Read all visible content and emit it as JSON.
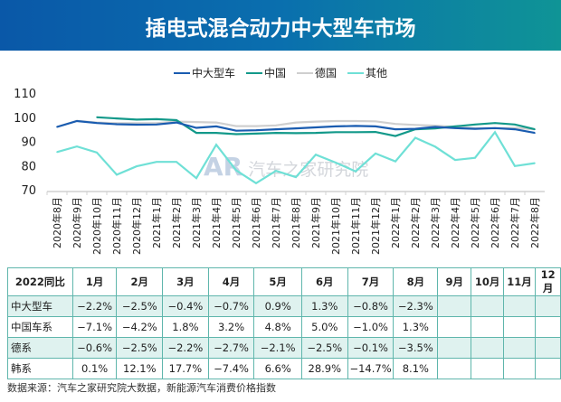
{
  "header": {
    "title": "插电式混合动力中大型车市场"
  },
  "watermark": {
    "logo": "AR",
    "text": "汽车之家研究院"
  },
  "chart_data": {
    "type": "line",
    "title": "",
    "xlabel": "",
    "ylabel": "",
    "ylim": [
      70,
      110
    ],
    "yticks": [
      "70",
      "80",
      "90",
      "100",
      "110"
    ],
    "legend_position": "top",
    "categories": [
      "2020年8月",
      "2020年9月",
      "2020年10月",
      "2020年11月",
      "2020年12月",
      "2021年1月",
      "2021年2月",
      "2021年3月",
      "2021年4月",
      "2021年5月",
      "2021年6月",
      "2021年7月",
      "2021年8月",
      "2021年9月",
      "2021年10月",
      "2021年11月",
      "2021年12月",
      "2022年1月",
      "2022年2月",
      "2022年3月",
      "2022年4月",
      "2022年5月",
      "2022年6月",
      "2022年7月",
      "2022年8月"
    ],
    "series": [
      {
        "name": "中大型车",
        "color": "#1a5cb0",
        "values": [
          96,
          98.4,
          97.6,
          97.1,
          96.9,
          97.0,
          97.8,
          95.6,
          96.2,
          94.4,
          94.6,
          95.0,
          95.4,
          95.8,
          96.2,
          96.4,
          96.2,
          95.0,
          95.2,
          96.0,
          95.5,
          95.2,
          95.5,
          95.0,
          93.5
        ]
      },
      {
        "name": "中国",
        "color": "#13998a",
        "values": [
          null,
          null,
          100,
          99.5,
          99.0,
          99.2,
          98.8,
          93.5,
          93.5,
          93.0,
          93.2,
          93.5,
          93.4,
          93.5,
          93.8,
          93.8,
          93.9,
          92.2,
          95.0,
          95.4,
          96.2,
          97.0,
          97.6,
          97.0,
          95.0
        ]
      },
      {
        "name": "德国",
        "color": "#cfcfcf",
        "values": [
          96,
          98.5,
          97.8,
          97.5,
          97.5,
          97.5,
          98.2,
          98.0,
          97.8,
          96.3,
          96.3,
          96.6,
          97.8,
          98.2,
          98.4,
          98.4,
          98.3,
          97.2,
          96.8,
          96.5,
          96.0,
          95.5,
          95.4,
          95.6,
          95.0
        ]
      },
      {
        "name": "其他",
        "color": "#6fe0d6",
        "values": [
          85.6,
          87.9,
          85.4,
          76.2,
          79.7,
          81.5,
          81.5,
          74.8,
          88.6,
          78.0,
          72.7,
          77.8,
          75.2,
          84.5,
          81.2,
          77.6,
          85.0,
          81.7,
          91.5,
          87.8,
          82.3,
          83.2,
          93.8,
          79.8,
          81.0
        ]
      }
    ]
  },
  "table": {
    "header": [
      "2022同比",
      "1月",
      "2月",
      "3月",
      "4月",
      "5月",
      "6月",
      "7月",
      "8月",
      "9月",
      "10月",
      "11月",
      "12月"
    ],
    "rows": [
      {
        "label": "中大型车",
        "values": [
          "−2.2%",
          "−2.5%",
          "−0.4%",
          "−0.7%",
          "0.9%",
          "1.3%",
          "−0.8%",
          "−2.3%",
          "",
          "",
          "",
          ""
        ]
      },
      {
        "label": "中国车系",
        "values": [
          "−7.1%",
          "−4.2%",
          "1.8%",
          "3.2%",
          "4.8%",
          "5.0%",
          "−1.0%",
          "1.3%",
          "",
          "",
          "",
          ""
        ]
      },
      {
        "label": "德系",
        "values": [
          "−0.6%",
          "−2.5%",
          "−2.2%",
          "−2.7%",
          "−2.1%",
          "−2.5%",
          "−0.1%",
          "−3.5%",
          "",
          "",
          "",
          ""
        ]
      },
      {
        "label": "韩系",
        "values": [
          "0.1%",
          "12.1%",
          "17.7%",
          "−7.4%",
          "6.6%",
          "28.9%",
          "−14.7%",
          "8.1%",
          "",
          "",
          "",
          ""
        ]
      }
    ]
  },
  "footer": {
    "source": "数据来源：汽车之家研究院大数据，新能源汽车消费价格指数"
  }
}
